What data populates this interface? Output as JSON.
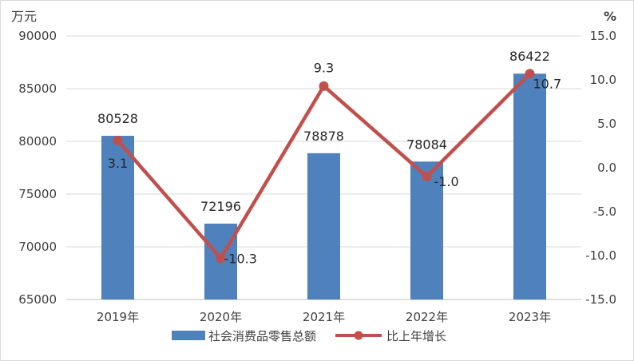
{
  "chart_data": {
    "type": "bar",
    "categories": [
      "2019年",
      "2020年",
      "2021年",
      "2022年",
      "2023年"
    ],
    "series": [
      {
        "name": "社会消费品零售总额",
        "type": "bar",
        "axis": "left",
        "values": [
          80528,
          72196,
          78878,
          78084,
          86422
        ],
        "labels": [
          "80528",
          "72196",
          "78878",
          "78084",
          "86422"
        ],
        "color": "#4F81BD"
      },
      {
        "name": "比上年增长",
        "type": "line",
        "axis": "right",
        "values": [
          3.1,
          -10.3,
          9.3,
          -1.0,
          10.7
        ],
        "labels": [
          "3.1",
          "-10.3",
          "9.3",
          "-1.0",
          "10.7"
        ],
        "color": "#C0504D"
      }
    ],
    "y_left": {
      "unit": "万元",
      "ylim": [
        65000,
        90000
      ],
      "ticks": [
        "90000",
        "85000",
        "80000",
        "75000",
        "70000",
        "65000"
      ],
      "tick_values": [
        90000,
        85000,
        80000,
        75000,
        70000,
        65000
      ]
    },
    "y_right": {
      "unit": "%",
      "ylim": [
        -15,
        15
      ],
      "ticks": [
        "15.0",
        "10.0",
        "5.0",
        "0.0",
        "-5.0",
        "-10.0",
        "-15.0"
      ],
      "tick_values": [
        15,
        10,
        5,
        0,
        -5,
        -10,
        -15
      ]
    },
    "grid": true,
    "legend_position": "bottom"
  }
}
